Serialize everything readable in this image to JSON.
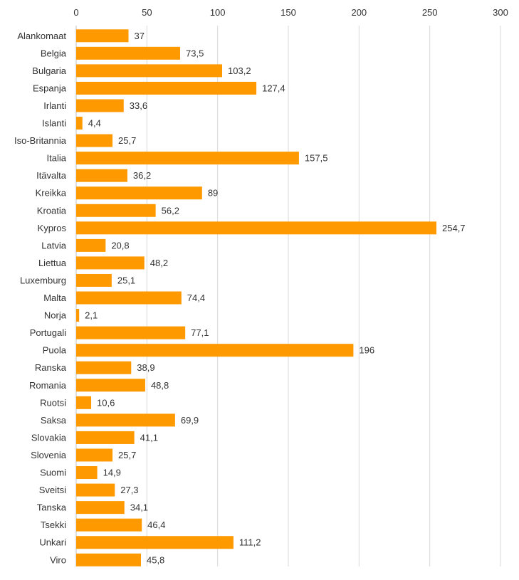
{
  "chart_data": {
    "type": "bar",
    "orientation": "horizontal",
    "title": "",
    "xlabel": "",
    "ylabel": "",
    "xlim": [
      0,
      300
    ],
    "x_ticks": [
      0,
      50,
      100,
      150,
      200,
      250,
      300
    ],
    "x_axis_position": "top",
    "grid": true,
    "legend": "none",
    "bar_color": "#FF9900",
    "categories": [
      "Alankomaat",
      "Belgia",
      "Bulgaria",
      "Espanja",
      "Irlanti",
      "Islanti",
      "Iso-Britannia",
      "Italia",
      "Itävalta",
      "Kreikka",
      "Kroatia",
      "Kypros",
      "Latvia",
      "Liettua",
      "Luxemburg",
      "Malta",
      "Norja",
      "Portugali",
      "Puola",
      "Ranska",
      "Romania",
      "Ruotsi",
      "Saksa",
      "Slovakia",
      "Slovenia",
      "Suomi",
      "Sveitsi",
      "Tanska",
      "Tsekki",
      "Unkari",
      "Viro"
    ],
    "values": [
      37,
      73.5,
      103.2,
      127.4,
      33.6,
      4.4,
      25.7,
      157.5,
      36.2,
      89,
      56.2,
      254.7,
      20.8,
      48.2,
      25.1,
      74.4,
      2.1,
      77.1,
      196,
      38.9,
      48.8,
      10.6,
      69.9,
      41.1,
      25.7,
      14.9,
      27.3,
      34.1,
      46.4,
      111.2,
      45.8
    ],
    "data_labels": [
      "37",
      "73,5",
      "103,2",
      "127,4",
      "33,6",
      "4,4",
      "25,7",
      "157,5",
      "36,2",
      "89",
      "56,2",
      "254,7",
      "20,8",
      "48,2",
      "25,1",
      "74,4",
      "2,1",
      "77,1",
      "196",
      "38,9",
      "48,8",
      "10,6",
      "69,9",
      "41,1",
      "25,7",
      "14,9",
      "27,3",
      "34,1",
      "46,4",
      "111,2",
      "45,8"
    ]
  }
}
